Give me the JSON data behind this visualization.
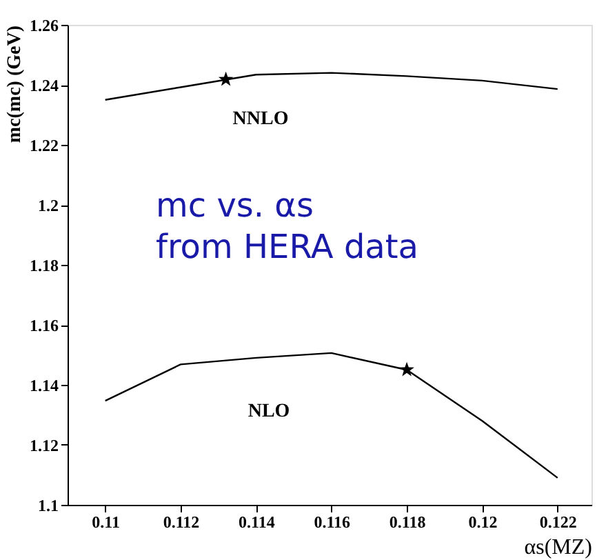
{
  "chart_data": {
    "type": "line",
    "xlabel": "αs(MZ)",
    "ylabel": "mc(mc) (GeV)",
    "xlim": [
      0.109,
      0.1229
    ],
    "ylim": [
      1.1,
      1.26
    ],
    "xticks": [
      0.11,
      0.112,
      0.114,
      0.116,
      0.118,
      0.12,
      0.122
    ],
    "yticks": [
      1.1,
      1.12,
      1.14,
      1.16,
      1.18,
      1.2,
      1.22,
      1.24,
      1.26
    ],
    "grid": false,
    "marker": "none",
    "line_style": "solid",
    "series": [
      {
        "color": "#000000",
        "x": [
          0.11,
          0.112,
          0.114,
          0.116,
          0.118,
          0.12,
          0.122
        ],
        "values": [
          1.235,
          1.2392,
          1.2434,
          1.244,
          1.2429,
          1.2414,
          1.2386
        ]
      },
      {
        "color": "#000000",
        "x": [
          0.11,
          0.112,
          0.114,
          0.116,
          0.118,
          0.12,
          0.122
        ],
        "values": [
          1.1347,
          1.1468,
          1.149,
          1.1506,
          1.145,
          1.128,
          1.109
        ]
      },
      {
        "type": "scatter",
        "marker": "star",
        "color": "#000000",
        "x": [
          0.1132,
          0.118
        ],
        "values": [
          1.2418,
          1.145
        ]
      }
    ],
    "annotations": [
      "NNLO",
      "NLO",
      "mc vs. αs\nfrom HERA data"
    ]
  }
}
